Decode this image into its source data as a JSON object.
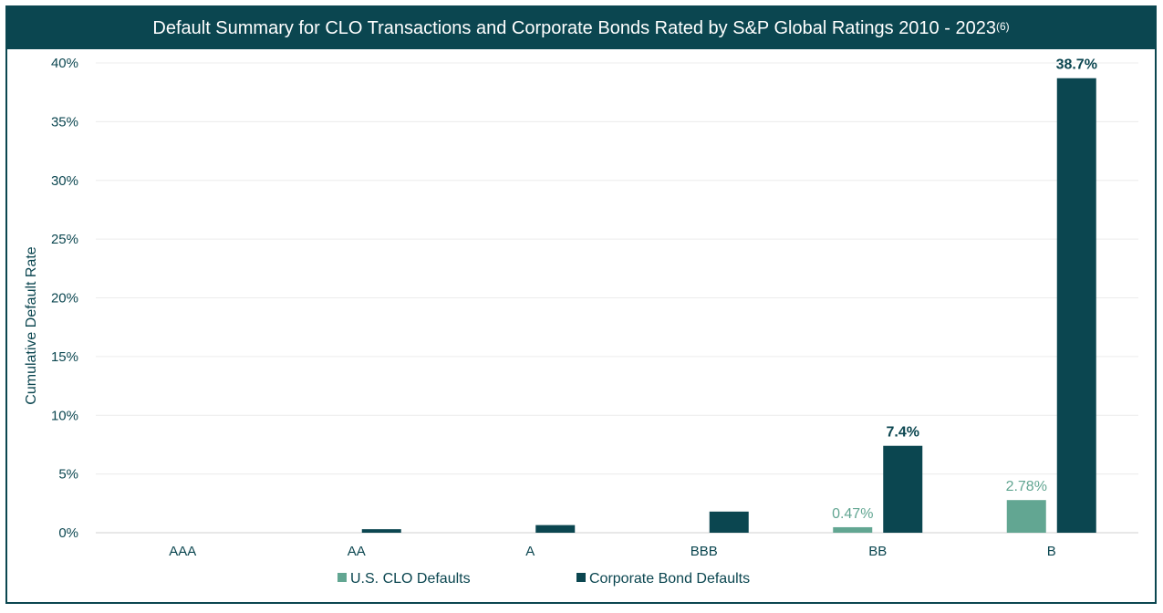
{
  "chart_data": {
    "type": "bar",
    "title": "Default Summary for CLO Transactions and Corporate Bonds Rated by S&P Global Ratings 2010 - 2023",
    "title_superscript": "(6)",
    "ylabel": "Cumulative Default Rate",
    "xlabel": "",
    "ylim": [
      0,
      40
    ],
    "yticks": [
      0,
      5,
      10,
      15,
      20,
      25,
      30,
      35,
      40
    ],
    "ytick_labels": [
      "0%",
      "5%",
      "10%",
      "15%",
      "20%",
      "25%",
      "30%",
      "35%",
      "40%"
    ],
    "categories": [
      "AAA",
      "AA",
      "A",
      "BBB",
      "BB",
      "B"
    ],
    "grid": true,
    "legend_position": "bottom",
    "series": [
      {
        "name": "U.S. CLO Defaults",
        "color": "#62a692",
        "values": [
          0,
          0,
          0,
          0,
          0.47,
          2.78
        ],
        "labels": [
          "",
          "",
          "",
          "",
          "0.47%",
          "2.78%"
        ]
      },
      {
        "name": "Corporate Bond Defaults",
        "color": "#0b4650",
        "values": [
          0,
          0.3,
          0.65,
          1.8,
          7.4,
          38.7
        ],
        "labels": [
          "",
          "",
          "",
          "",
          "7.4%",
          "38.7%"
        ]
      }
    ]
  }
}
